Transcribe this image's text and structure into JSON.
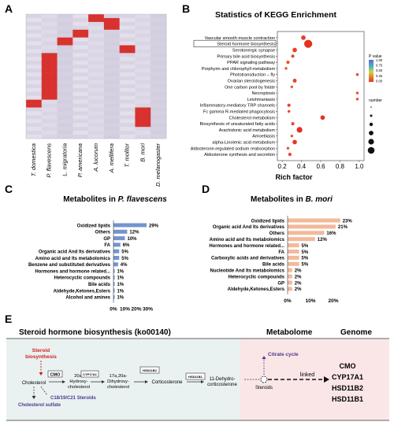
{
  "panels": {
    "A": {
      "letter": "A",
      "species": [
        "T. domestica",
        "P. flavescens",
        "L. migratoria",
        "P. americana",
        "A. lucorum",
        "A. mellifera",
        "T. molitor",
        "B. mori",
        "D. melanogaster"
      ]
    },
    "B": {
      "letter": "B",
      "title": "Statistics of KEGG Enrichment",
      "xlabel": "Rich factor",
      "x_ticks": [
        "0.2",
        "0.4",
        "0.6",
        "0.8",
        "1.0"
      ],
      "legend_pvalue_title": "P value",
      "legend_pvalue_ticks": [
        "1.00",
        "0.75",
        "0.50",
        "0.25",
        "0.00"
      ],
      "legend_number_title": "number",
      "highlighted_term": "Steroid hormone biosynthesis",
      "terms": [
        {
          "name": "Vascular smooth muscle contraction",
          "rich": 0.42,
          "size": 3,
          "color": "#e33b2e"
        },
        {
          "name": "Steroid hormone biosynthesis",
          "rich": 0.47,
          "size": 6,
          "color": "#e8301f"
        },
        {
          "name": "Serotonergic synapse",
          "rich": 0.33,
          "size": 3,
          "color": "#e8402a"
        },
        {
          "name": "Primary bile acid biosynthesis",
          "rich": 0.31,
          "size": 2,
          "color": "#e84a2a"
        },
        {
          "name": "PPAR signaling pathway",
          "rich": 0.26,
          "size": 2,
          "color": "#e8502f"
        },
        {
          "name": "Porphyrin and chlorophyll metabolism",
          "rich": 0.24,
          "size": 1.5,
          "color": "#e85a33"
        },
        {
          "name": "Phototransduction - fly",
          "rich": 0.98,
          "size": 1.5,
          "color": "#e84030"
        },
        {
          "name": "Ovarian steroidogenesis",
          "rich": 0.33,
          "size": 2.5,
          "color": "#e8412b"
        },
        {
          "name": "One carbon pool by folate",
          "rich": 0.3,
          "size": 1.5,
          "color": "#e85533"
        },
        {
          "name": "Necroptosis",
          "rich": 0.98,
          "size": 1.5,
          "color": "#e85035"
        },
        {
          "name": "Leishmaniasis",
          "rich": 0.98,
          "size": 1.5,
          "color": "#e85035"
        },
        {
          "name": "Inflammatory mediator regulation of TRP channels",
          "rich": 0.27,
          "size": 2,
          "color": "#e8452c"
        },
        {
          "name": "Fc gamma R-mediated phagocytosis",
          "rich": 0.27,
          "size": 1.5,
          "color": "#e84d2e"
        },
        {
          "name": "Cholesterol metabolism",
          "rich": 0.62,
          "size": 3,
          "color": "#e33320"
        },
        {
          "name": "Biosynthesis of unsaturated fatty acids",
          "rich": 0.31,
          "size": 2,
          "color": "#e84a2c"
        },
        {
          "name": "Arachidonic acid metabolism",
          "rich": 0.38,
          "size": 4,
          "color": "#e52f20"
        },
        {
          "name": "Amoebiasis",
          "rich": 0.3,
          "size": 1.5,
          "color": "#e85533"
        },
        {
          "name": "alpha-Linolenic acid metabolism",
          "rich": 0.33,
          "size": 3,
          "color": "#e5381f"
        },
        {
          "name": "Aldosterone-regulated sodium reabsorption",
          "rich": 0.26,
          "size": 1.5,
          "color": "#e84f2f"
        },
        {
          "name": "Aldosterone synthesis and secretion",
          "rich": 0.28,
          "size": 2,
          "color": "#e8472c"
        }
      ],
      "term_labels": [
        "Vascular smooth muscle contraction",
        "Steroid hormone biosynthesis",
        "Serotonergic synapse",
        "Primary bile acid biosynthesis",
        "PPAR signaling pathway",
        "Porphyrin and chlorophyll metabolism",
        "Phototransduction – fly",
        "Ovarian steroidogenesis",
        "One carbon pool by folate",
        "Necroptosis",
        "Leishmaniasis",
        "Inflammatory-mediatory TRP channels",
        "Fc gamma R-mediated phagocytosis",
        "Cholesterol metabolism",
        "Biosynthesis of unsaturated fatty acids",
        "Arachidonic acid metabolism",
        "Amoebiasis",
        "alpha-Linolenic acid metabolism",
        "Aldosterone-regulated sodium reabsorption",
        "Aldosterone synthesis and secretion"
      ]
    },
    "C": {
      "letter": "C",
      "title_prefix": "Metabolites in ",
      "title_species": "P. flavescens",
      "color": "#7394cf",
      "x_ticks": [
        "0%",
        "10%",
        "20%",
        "30%"
      ],
      "categories": [
        "Oxidized lipids",
        "Others",
        "GP",
        "FA",
        "Organic acid And  Its derivatives",
        "Amino acid  and  Its metabolomics",
        "Benzene and substituted derivatives",
        "Hormones and hormone related...",
        "Heterocyclic compounds",
        "Bile acids",
        "Aldehyde,Ketones,Esters",
        "Alcohol and amines"
      ],
      "values": [
        29,
        12,
        10,
        6,
        5,
        5,
        4,
        1,
        1,
        1,
        1,
        1
      ],
      "value_labels": [
        "29%",
        "12%",
        "10%",
        "6%",
        "5%",
        "5%",
        "4%",
        "1%",
        "1%",
        "1%",
        "1%",
        "1%"
      ]
    },
    "D": {
      "letter": "D",
      "title_prefix": "Metabolites in ",
      "title_species": "B. mori",
      "color": "#f2b99a",
      "x_ticks": [
        "0%",
        "10%",
        "20%"
      ],
      "categories": [
        "Oxidized lipids",
        "Organic acid And  Its derivatives",
        "Others",
        "Amino acid  and  Its metabolomics",
        "Hormones and hormone related...",
        "FA",
        "Carboxylic acids and derivatives",
        "Bile acids",
        "Nucleotide And  Its metabolomics",
        "Heterocyclic compounds",
        "GP",
        "Aldehyde,Ketones,Esters"
      ],
      "values": [
        23,
        21,
        16,
        12,
        5,
        5,
        5,
        5,
        2,
        2,
        2,
        2
      ],
      "value_labels": [
        "23%",
        "21%",
        "16%",
        "12%",
        "5%",
        "5%",
        "5%",
        "5%",
        "2%",
        "2%",
        "2%",
        "2%"
      ]
    },
    "E": {
      "letter": "E",
      "section_steroid": "Steroid hormone biosynthesis (ko00140)",
      "section_metabolome": "Metabolome",
      "section_genome": "Genome",
      "steroid_biosynthesis": [
        "Steroid",
        "biosynthesis"
      ],
      "cholesterol": "Cholesterol",
      "cholesterol_sulfate": "Cholesterol sulfate",
      "c18_steroids": "C18/19/C21 Steroids",
      "enzyme_cmo": "CMO",
      "enzyme_cyp": "CYP17A1",
      "enzyme_hsd2": "HSD11B2",
      "enzyme_hsd1": "HSD11B1",
      "hydroxy": [
        "20a-",
        "Hydroxy-",
        "cholesterol"
      ],
      "dihydroxy": [
        "17a,20a-",
        "Dihydroxy-",
        "cholesterol"
      ],
      "corticosterone": "Corticosterone",
      "dehydro": [
        "11-Dehydro-",
        "corticosterone"
      ],
      "citrate_cycle": "Citrate cycle",
      "steroids": "Steroids",
      "linked": "linked",
      "genes": [
        "CMO",
        "CYP17A1",
        "HSD11B2",
        "HSD11B1"
      ]
    }
  }
}
